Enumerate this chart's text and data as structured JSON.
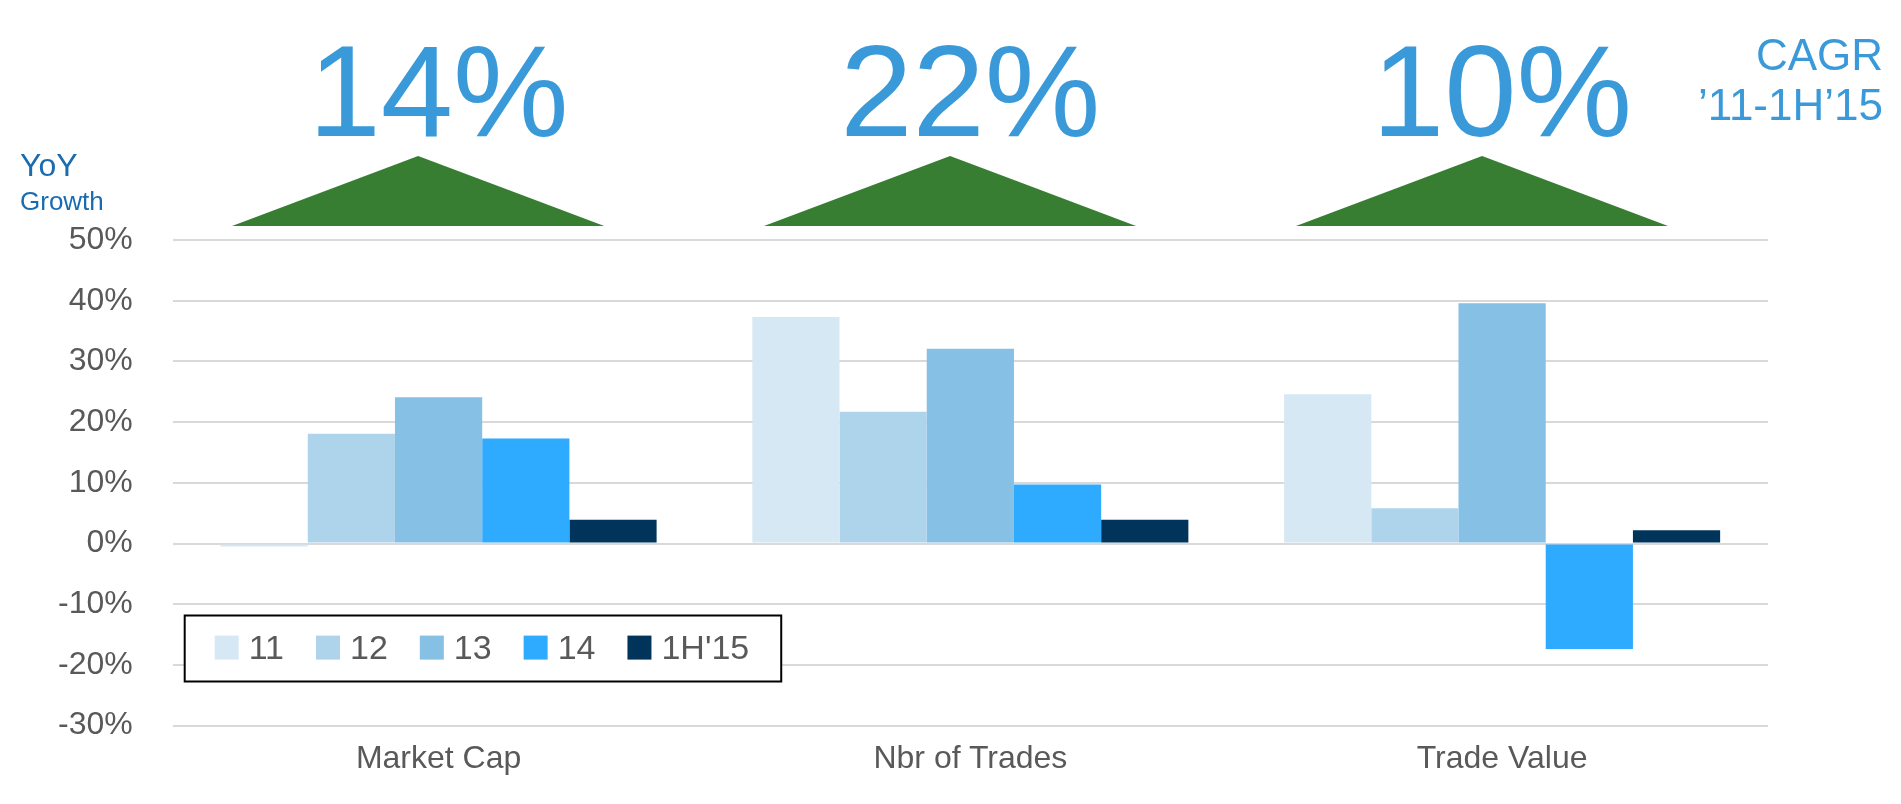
{
  "chart_data": {
    "type": "bar",
    "ylabel": "YoY Growth",
    "categories": [
      "Market Cap",
      "Nbr of Trades",
      "Trade Value"
    ],
    "series": [
      {
        "name": "11",
        "color": "#d6e8f4",
        "values": [
          -0.5,
          37.3,
          24.6
        ]
      },
      {
        "name": "12",
        "color": "#aed4ec",
        "values": [
          18.1,
          21.7,
          5.8
        ]
      },
      {
        "name": "13",
        "color": "#86c0e4",
        "values": [
          24.1,
          32.1,
          39.6
        ]
      },
      {
        "name": "14",
        "color": "#2eaaff",
        "values": [
          17.3,
          9.7,
          -17.4
        ]
      },
      {
        "name": "1H'15",
        "color": "#00345a",
        "values": [
          3.9,
          3.9,
          2.2
        ]
      }
    ],
    "ylim": [
      -30,
      50
    ],
    "yticks": [
      {
        "value": -30,
        "label": "-30%"
      },
      {
        "value": -20,
        "label": "-20%"
      },
      {
        "value": -10,
        "label": "-10%"
      },
      {
        "value": 0,
        "label": "0%"
      },
      {
        "value": 10,
        "label": "10%"
      },
      {
        "value": 20,
        "label": "20%"
      },
      {
        "value": 30,
        "label": "30%"
      },
      {
        "value": 40,
        "label": "40%"
      },
      {
        "value": 50,
        "label": "50%"
      }
    ],
    "grid": "y",
    "legend": "bottom left",
    "annotations": [
      "14%",
      "22%",
      "10%",
      "CAGR ’11-1H’15"
    ]
  }
}
